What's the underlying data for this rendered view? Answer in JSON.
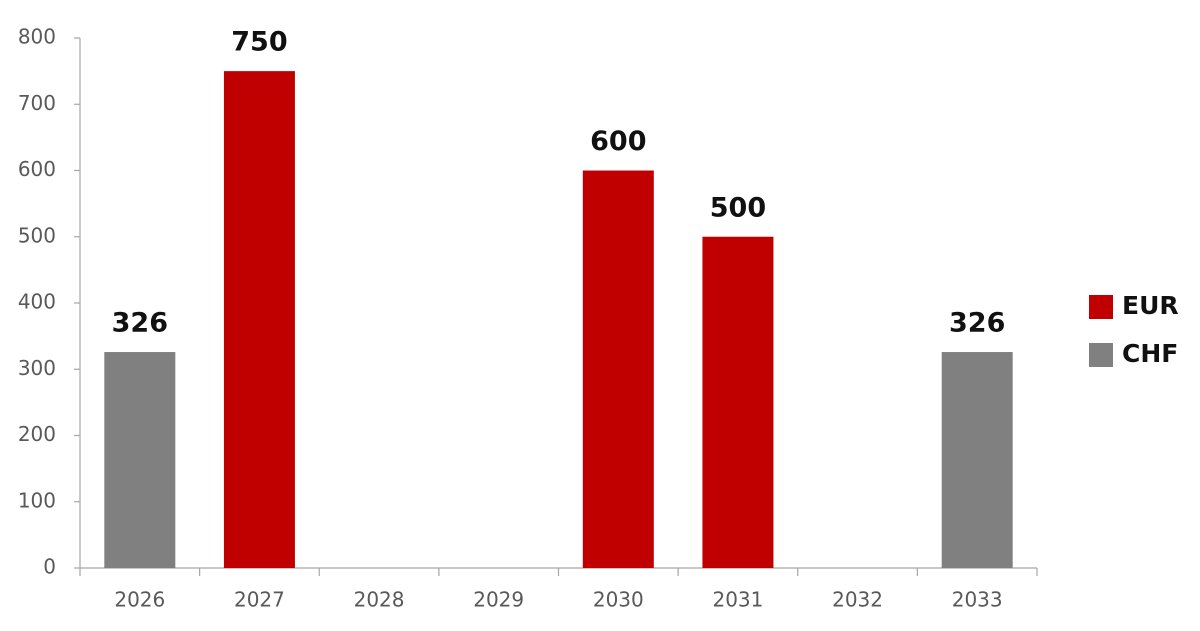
{
  "chart_data": {
    "type": "bar",
    "categories": [
      "2026",
      "2027",
      "2028",
      "2029",
      "2030",
      "2031",
      "2032",
      "2033"
    ],
    "series": [
      {
        "name": "EUR",
        "color": "#c00000",
        "values": [
          null,
          750,
          null,
          null,
          600,
          500,
          null,
          null
        ]
      },
      {
        "name": "CHF",
        "color": "#808080",
        "values": [
          326,
          null,
          null,
          null,
          null,
          null,
          null,
          326
        ]
      }
    ],
    "ylim": [
      0,
      800
    ],
    "yticks": [
      0,
      100,
      200,
      300,
      400,
      500,
      600,
      700,
      800
    ],
    "grid": false,
    "legend": "right"
  }
}
